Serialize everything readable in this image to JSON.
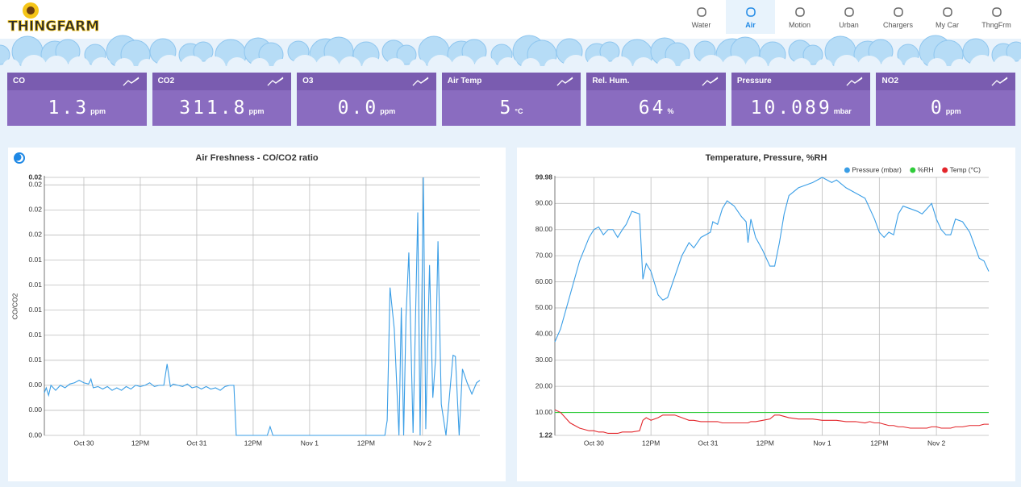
{
  "logo": "THINGFARM",
  "nav": {
    "items": [
      "Water",
      "Air",
      "Motion",
      "Urban",
      "Chargers",
      "My Car",
      "ThngFrm"
    ],
    "active": 1
  },
  "tiles": [
    {
      "label": "CO",
      "value": "1.3",
      "unit": "ppm"
    },
    {
      "label": "CO2",
      "value": "311.8",
      "unit": "ppm"
    },
    {
      "label": "O3",
      "value": "0.0",
      "unit": "ppm"
    },
    {
      "label": "Air Temp",
      "value": "5",
      "unit": "°C"
    },
    {
      "label": "Rel. Hum.",
      "value": "64",
      "unit": "%"
    },
    {
      "label": "Pressure",
      "value": "10.089",
      "unit": "mbar"
    },
    {
      "label": "NO2",
      "value": "0",
      "unit": "ppm"
    }
  ],
  "chart_data": [
    {
      "type": "line",
      "title": "Air Freshness - CO/CO2 ratio",
      "y_label": "CO/CO2",
      "color": "#3a9ee6",
      "grid": true,
      "x": [
        -8.4,
        -8,
        -7.5,
        -7,
        -6,
        -5,
        -4,
        -3,
        -2,
        -1,
        0,
        1,
        1.5,
        2,
        3,
        4,
        5,
        6,
        7,
        8,
        9,
        10,
        11,
        12,
        13,
        14,
        15,
        16,
        17,
        17.7,
        18.4,
        19,
        20,
        21,
        22,
        23,
        24,
        25,
        26,
        27,
        28,
        29,
        30,
        31,
        31.9,
        32.4,
        39,
        39.6,
        40.2,
        64,
        64.5,
        65.1,
        66,
        67,
        67.5,
        68,
        68.5,
        69.1,
        70,
        71,
        71.5,
        72.2,
        72.7,
        73.5,
        74.2,
        74.8,
        75.3,
        76,
        77,
        78.5,
        79,
        79.8,
        80.5,
        81.5,
        82.5,
        83.5,
        84.2
      ],
      "values": [
        0.0034,
        0.0038,
        0.0032,
        0.004,
        0.0036,
        0.004,
        0.0038,
        0.0041,
        0.0042,
        0.0044,
        0.0042,
        0.0041,
        0.0045,
        0.0038,
        0.0039,
        0.0037,
        0.0039,
        0.0036,
        0.0038,
        0.0036,
        0.0039,
        0.0037,
        0.004,
        0.0039,
        0.004,
        0.0042,
        0.0039,
        0.004,
        0.004,
        0.0057,
        0.0039,
        0.0041,
        0.004,
        0.0039,
        0.0041,
        0.0038,
        0.0039,
        0.0037,
        0.0039,
        0.0037,
        0.0038,
        0.0036,
        0.0039,
        0.004,
        0.004,
        0,
        0,
        0.0007,
        0,
        0,
        0.0012,
        0.0118,
        0.0085,
        0,
        0.0102,
        0,
        0.0095,
        0.0146,
        0.0002,
        0.0178,
        0,
        0.0206,
        0.0005,
        0.0136,
        0.003,
        0.0062,
        0.0155,
        0.0025,
        0,
        0.0064,
        0.0063,
        0,
        0.0053,
        0.0042,
        0.0033,
        0.0042,
        0.0044
      ],
      "xlim": [
        -8.4,
        84.2
      ],
      "xticks": [
        {
          "value": 0,
          "label": "Oct 30"
        },
        {
          "value": 12,
          "label": "12PM"
        },
        {
          "value": 24,
          "label": "Oct 31"
        },
        {
          "value": 36,
          "label": "12PM"
        },
        {
          "value": 48,
          "label": "Nov 1"
        },
        {
          "value": 60,
          "label": "12PM"
        },
        {
          "value": 72,
          "label": "Nov 2"
        }
      ],
      "ylim": [
        0,
        0.0206
      ],
      "yticks": [
        {
          "value": 0,
          "label": "0.00"
        },
        {
          "value": 0.002,
          "label": "0.00"
        },
        {
          "value": 0.004,
          "label": "0.00"
        },
        {
          "value": 0.006,
          "label": "0.01"
        },
        {
          "value": 0.008,
          "label": "0.01"
        },
        0.01,
        {
          "value": 0.012,
          "label": "0.01"
        },
        {
          "value": 0.014,
          "label": "0.01"
        },
        {
          "value": 0.016,
          "label": "0.02"
        },
        {
          "value": 0.018,
          "label": "0.02"
        },
        0.02,
        {
          "value": 0.0206,
          "label": "0.02"
        }
      ]
    },
    {
      "type": "line",
      "title": "Temperature, Pressure, %RH",
      "grid": true,
      "legend": "top-right",
      "x": [
        -8.2,
        -7,
        -5,
        -3,
        -1,
        0,
        1,
        2,
        3,
        4,
        5,
        6,
        6.8,
        8,
        9.6,
        10.3,
        11,
        12,
        13.5,
        14.5,
        15.5,
        17,
        18.5,
        20,
        21,
        22.5,
        24.5,
        25,
        26,
        27,
        28,
        29.5,
        31,
        32,
        32.4,
        33,
        34,
        35.5,
        37,
        38,
        39,
        40,
        41,
        43,
        46,
        48,
        50,
        51,
        53,
        55,
        57,
        58,
        59,
        60,
        61,
        62,
        63,
        64,
        65,
        66.5,
        68,
        69,
        70,
        71,
        72,
        73,
        74,
        75,
        76,
        77.5,
        79,
        80,
        81,
        82,
        83
      ],
      "series": [
        {
          "name": "Pressure (mbar)",
          "color": "#3a9ee6",
          "values": [
            37,
            42,
            55,
            68,
            77,
            80,
            81,
            78,
            80,
            80,
            77,
            80,
            82,
            87,
            86,
            61,
            67,
            64,
            55,
            53,
            54,
            62,
            70,
            75,
            73,
            77,
            79,
            83,
            82,
            88,
            91,
            89,
            85,
            83,
            75,
            84,
            77,
            72,
            66,
            66,
            75,
            86,
            93,
            96,
            98,
            99.98,
            98,
            99,
            96,
            94,
            92,
            88,
            84,
            79,
            77,
            79,
            78,
            86,
            89,
            88,
            87,
            86,
            88,
            90,
            84,
            80,
            78,
            78,
            84,
            83,
            79,
            74,
            69,
            68,
            64
          ]
        },
        {
          "name": "%RH",
          "color": "#2fcc3a",
          "values": [
            10,
            10,
            10,
            10,
            10,
            10,
            10,
            10,
            10,
            10,
            10,
            10,
            10,
            10,
            10,
            10,
            10,
            10,
            10,
            10,
            10,
            10,
            10,
            10,
            10,
            10,
            10,
            10,
            10,
            10,
            10,
            10,
            10,
            10,
            10,
            10,
            10,
            10,
            10,
            10,
            10,
            10,
            10,
            10,
            10,
            10,
            10,
            10,
            10,
            10,
            10,
            10,
            10,
            10,
            10,
            10,
            10,
            10,
            10,
            10,
            10,
            10,
            10,
            10,
            10,
            10,
            10,
            10,
            10,
            10,
            10,
            10,
            10,
            10,
            10
          ]
        },
        {
          "name": "Temp (°C)",
          "color": "#e3262b",
          "values": [
            11,
            10,
            6,
            4,
            3,
            3,
            2.5,
            2.5,
            2,
            2,
            2,
            2.5,
            2.5,
            2.5,
            3,
            7,
            8,
            7,
            8,
            9,
            9,
            9,
            8,
            7,
            7,
            6.5,
            6.5,
            6.5,
            6.5,
            6,
            6,
            6,
            6,
            6,
            6,
            6.5,
            6.5,
            7,
            7.5,
            9,
            9,
            8.5,
            8,
            7.5,
            7.5,
            7,
            7,
            7,
            6.5,
            6.5,
            6,
            6.5,
            6,
            6,
            5.5,
            5,
            5,
            4.5,
            4.5,
            4,
            4,
            4,
            4,
            4.5,
            4.5,
            4,
            4,
            4,
            4.5,
            4.5,
            5,
            5,
            5,
            5.5,
            5.5
          ]
        }
      ],
      "xlim": [
        -8.2,
        83
      ],
      "xticks": [
        {
          "value": 0,
          "label": "Oct 30"
        },
        {
          "value": 12,
          "label": "12PM"
        },
        {
          "value": 24,
          "label": "Oct 31"
        },
        {
          "value": 36,
          "label": "12PM"
        },
        {
          "value": 48,
          "label": "Nov 1"
        },
        {
          "value": 60,
          "label": "12PM"
        },
        {
          "value": 72,
          "label": "Nov 2"
        }
      ],
      "ylim": [
        1.22,
        99.98
      ],
      "yticks": [
        1.22,
        {
          "value": 10,
          "label": "10.00"
        },
        {
          "value": 20,
          "label": "20.00"
        },
        {
          "value": 30,
          "label": "30.00"
        },
        {
          "value": 40,
          "label": "40.00"
        },
        {
          "value": 50,
          "label": "50.00"
        },
        {
          "value": 60,
          "label": "60.00"
        },
        {
          "value": 70,
          "label": "70.00"
        },
        {
          "value": 80,
          "label": "80.00"
        },
        {
          "value": 90,
          "label": "90.00"
        },
        99.98
      ]
    }
  ]
}
